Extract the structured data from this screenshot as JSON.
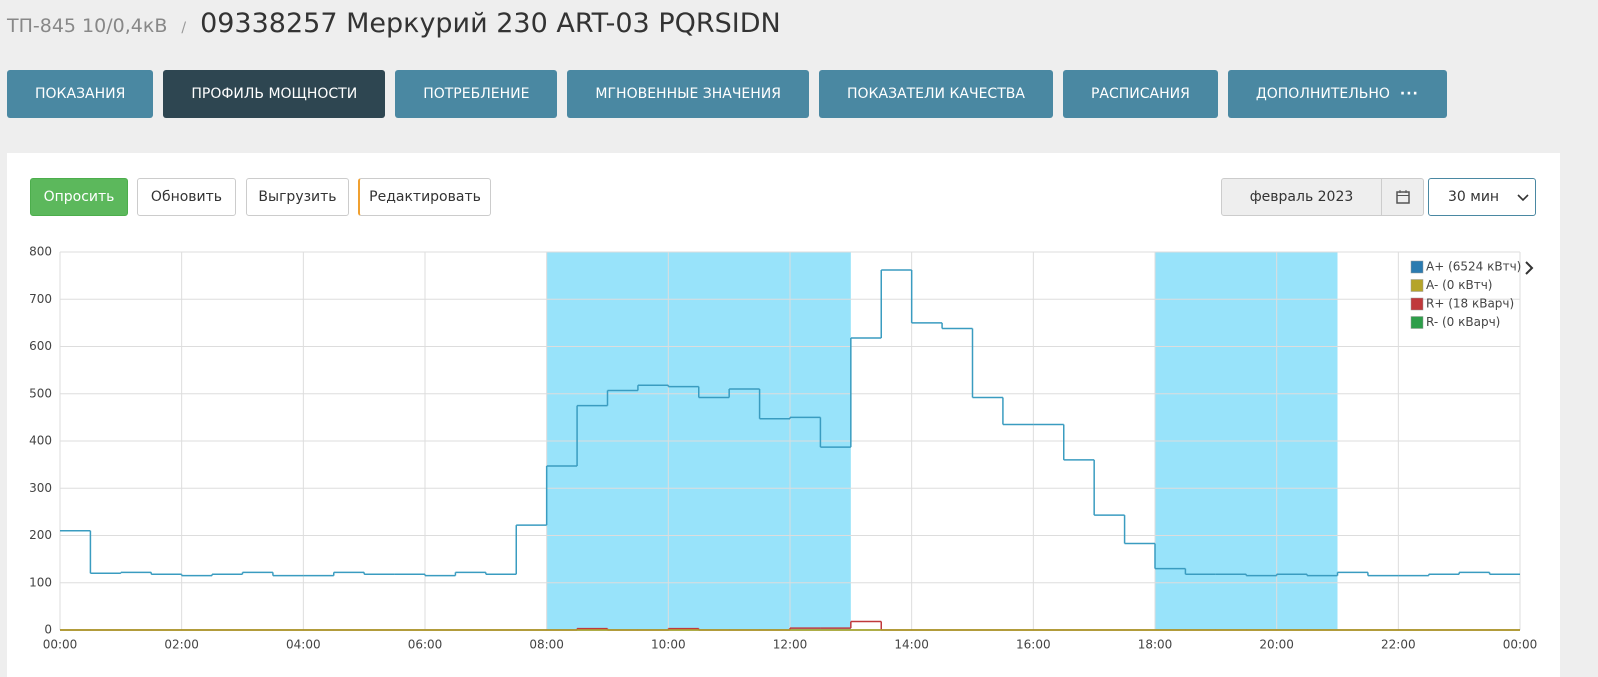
{
  "breadcrumb": {
    "parent": "ТП-845 10/0,4кВ",
    "separator": "/",
    "title": "09338257 Меркурий 230 ART-03 PQRSIDN"
  },
  "tabs": [
    "ПОКАЗАНИЯ",
    "ПРОФИЛЬ МОЩНОСТИ",
    "ПОТРЕБЛЕНИЕ",
    "МГНОВЕННЫЕ ЗНАЧЕНИЯ",
    "ПОКАЗАТЕЛИ КАЧЕСТВА",
    "РАСПИСАНИЯ",
    "ДОПОЛНИТЕЛЬНО"
  ],
  "toolbar": {
    "buttons": [
      "Опросить",
      "Обновить",
      "Выгрузить",
      "Редактировать"
    ],
    "period": "февраль 2023",
    "interval": "30 мин"
  },
  "chart_data": {
    "type": "step",
    "x": [
      0,
      0.5,
      1,
      1.5,
      2,
      2.5,
      3,
      3.5,
      4,
      4.5,
      5,
      5.5,
      6,
      6.5,
      7,
      7.5,
      8,
      8.5,
      9,
      9.5,
      10,
      10.5,
      11,
      11.5,
      12,
      12.5,
      13,
      13.5,
      14,
      14.5,
      15,
      15.5,
      16,
      16.5,
      17,
      17.5,
      18,
      18.5,
      19,
      19.5,
      20,
      20.5,
      21,
      21.5,
      22,
      22.5,
      23,
      23.5
    ],
    "series": [
      {
        "name": "A+ (6524 кВтч)",
        "color": "#3a9cc0",
        "legend_color": "#2b7bb0",
        "values": [
          210,
          120,
          122,
          118,
          115,
          118,
          122,
          115,
          115,
          122,
          118,
          118,
          115,
          122,
          118,
          222,
          347,
          475,
          507,
          518,
          515,
          492,
          510,
          447,
          450,
          387,
          618,
          762,
          650,
          638,
          492,
          435,
          435,
          360,
          243,
          183,
          130,
          118,
          118,
          115,
          118,
          115,
          122,
          115,
          115,
          118,
          122,
          118
        ]
      },
      {
        "name": "A- (0 кВтч)",
        "color": "#b5a42a",
        "values": [
          0,
          0,
          0,
          0,
          0,
          0,
          0,
          0,
          0,
          0,
          0,
          0,
          0,
          0,
          0,
          0,
          0,
          0,
          0,
          0,
          0,
          0,
          0,
          0,
          0,
          0,
          0,
          0,
          0,
          0,
          0,
          0,
          0,
          0,
          0,
          0,
          0,
          0,
          0,
          0,
          0,
          0,
          0,
          0,
          0,
          0,
          0,
          0
        ]
      },
      {
        "name": "R+ (18 кВарч)",
        "color": "#c0393b",
        "values": [
          0,
          0,
          0,
          0,
          0,
          0,
          0,
          0,
          0,
          0,
          0,
          0,
          0,
          0,
          0,
          0,
          0,
          3,
          0,
          0,
          3,
          0,
          0,
          0,
          4,
          4,
          18,
          0,
          0,
          0,
          0,
          0,
          0,
          0,
          0,
          0,
          0,
          0,
          0,
          0,
          0,
          0,
          0,
          0,
          0,
          0,
          0,
          0
        ]
      },
      {
        "name": "R- (0 кВарч)",
        "color": "#2e9e4a",
        "values": [
          0,
          0,
          0,
          0,
          0,
          0,
          0,
          0,
          0,
          0,
          0,
          0,
          0,
          0,
          0,
          0,
          0,
          0,
          0,
          0,
          0,
          0,
          0,
          0,
          0,
          0,
          0,
          0,
          0,
          0,
          0,
          0,
          0,
          0,
          0,
          0,
          0,
          0,
          0,
          0,
          0,
          0,
          0,
          0,
          0,
          0,
          0,
          0
        ]
      }
    ],
    "bands": [
      [
        8,
        13
      ],
      [
        18,
        21
      ]
    ],
    "band_color": "#98e3fa",
    "xlim": [
      0,
      24
    ],
    "xticks": [
      {
        "value": 0,
        "label": "00:00"
      },
      {
        "value": 2,
        "label": "02:00"
      },
      {
        "value": 4,
        "label": "04:00"
      },
      {
        "value": 6,
        "label": "06:00"
      },
      {
        "value": 8,
        "label": "08:00"
      },
      {
        "value": 10,
        "label": "10:00"
      },
      {
        "value": 12,
        "label": "12:00"
      },
      {
        "value": 14,
        "label": "14:00"
      },
      {
        "value": 16,
        "label": "16:00"
      },
      {
        "value": 18,
        "label": "18:00"
      },
      {
        "value": 20,
        "label": "20:00"
      },
      {
        "value": 22,
        "label": "22:00"
      },
      {
        "value": 24,
        "label": "00:00"
      }
    ],
    "ylim": [
      0,
      800
    ],
    "yticks": [
      0,
      100,
      200,
      300,
      400,
      500,
      600,
      700,
      800
    ],
    "grid": true,
    "legend": "top-right"
  }
}
